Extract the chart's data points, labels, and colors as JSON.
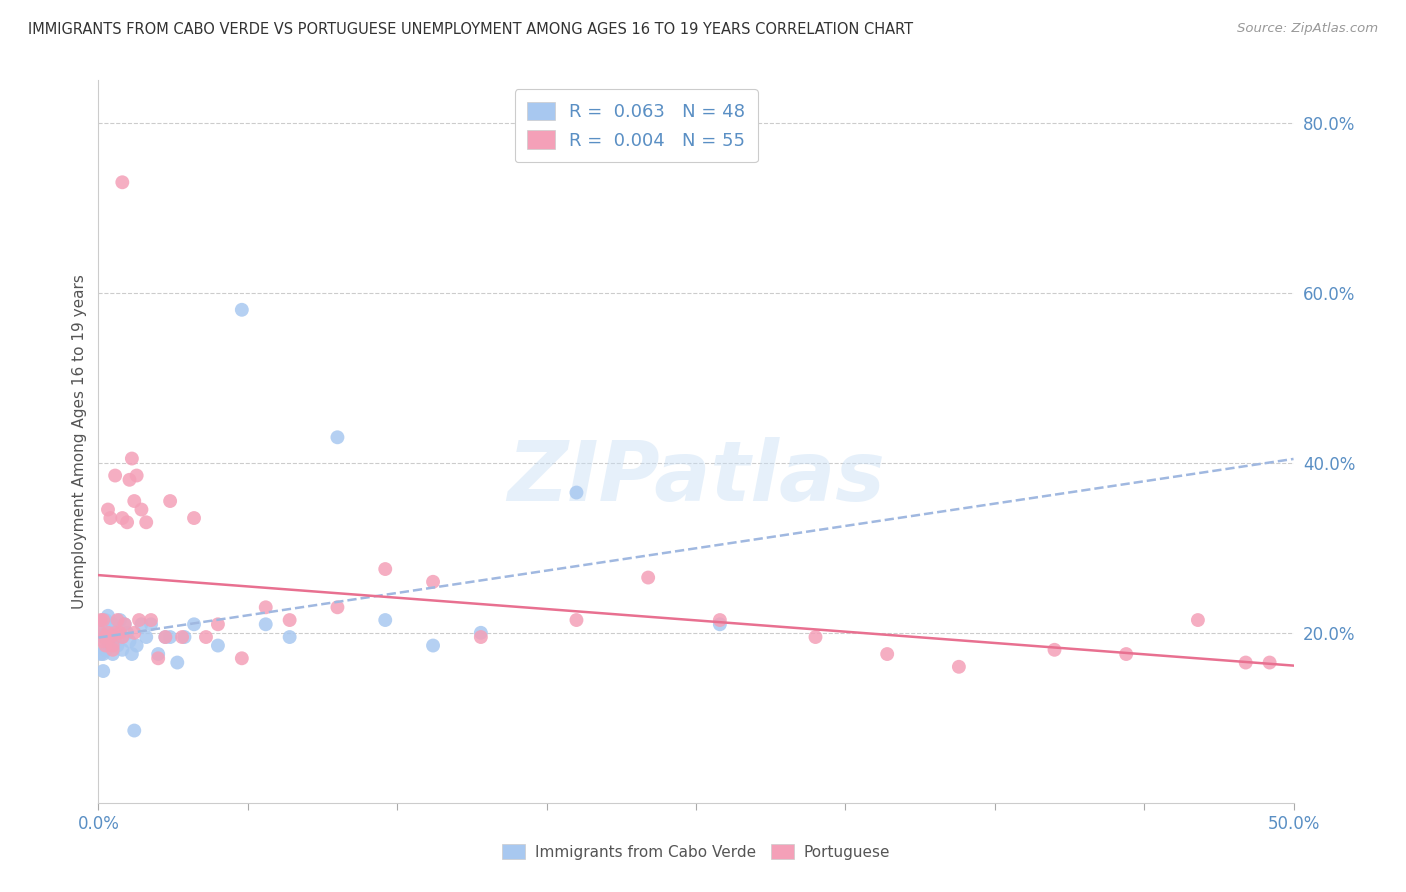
{
  "title": "IMMIGRANTS FROM CABO VERDE VS PORTUGUESE UNEMPLOYMENT AMONG AGES 16 TO 19 YEARS CORRELATION CHART",
  "source": "Source: ZipAtlas.com",
  "ylabel": "Unemployment Among Ages 16 to 19 years",
  "xlim": [
    0.0,
    0.5
  ],
  "ylim": [
    0.0,
    0.85
  ],
  "yticks_right": [
    0.2,
    0.4,
    0.6,
    0.8
  ],
  "ytick_labels_right": [
    "20.0%",
    "40.0%",
    "60.0%",
    "80.0%"
  ],
  "xtick_positions": [
    0.0,
    0.0625,
    0.125,
    0.1875,
    0.25,
    0.3125,
    0.375,
    0.4375,
    0.5
  ],
  "xtick_edge_labels": [
    "0.0%",
    "50.0%"
  ],
  "color_blue": "#a8c8f0",
  "color_pink": "#f4a0b8",
  "color_trend_blue": "#a0b8e0",
  "color_trend_pink": "#e87090",
  "cabo_verde_x": [
    0.001,
    0.001,
    0.002,
    0.002,
    0.002,
    0.002,
    0.003,
    0.003,
    0.003,
    0.004,
    0.004,
    0.004,
    0.005,
    0.005,
    0.005,
    0.006,
    0.006,
    0.007,
    0.007,
    0.008,
    0.009,
    0.01,
    0.01,
    0.011,
    0.012,
    0.013,
    0.014,
    0.015,
    0.016,
    0.018,
    0.02,
    0.022,
    0.025,
    0.028,
    0.03,
    0.033,
    0.036,
    0.04,
    0.05,
    0.06,
    0.07,
    0.08,
    0.1,
    0.12,
    0.14,
    0.16,
    0.2,
    0.26
  ],
  "cabo_verde_y": [
    0.175,
    0.21,
    0.155,
    0.175,
    0.195,
    0.215,
    0.18,
    0.2,
    0.215,
    0.19,
    0.2,
    0.22,
    0.185,
    0.195,
    0.205,
    0.175,
    0.21,
    0.19,
    0.2,
    0.185,
    0.215,
    0.18,
    0.195,
    0.21,
    0.2,
    0.19,
    0.175,
    0.085,
    0.185,
    0.21,
    0.195,
    0.21,
    0.175,
    0.195,
    0.195,
    0.165,
    0.195,
    0.21,
    0.185,
    0.58,
    0.21,
    0.195,
    0.43,
    0.215,
    0.185,
    0.2,
    0.365,
    0.21
  ],
  "portuguese_x": [
    0.001,
    0.001,
    0.002,
    0.002,
    0.003,
    0.003,
    0.004,
    0.004,
    0.005,
    0.005,
    0.006,
    0.006,
    0.007,
    0.007,
    0.008,
    0.009,
    0.01,
    0.01,
    0.011,
    0.012,
    0.013,
    0.014,
    0.015,
    0.016,
    0.017,
    0.018,
    0.02,
    0.022,
    0.025,
    0.028,
    0.03,
    0.035,
    0.04,
    0.045,
    0.05,
    0.06,
    0.07,
    0.08,
    0.1,
    0.12,
    0.14,
    0.16,
    0.2,
    0.23,
    0.26,
    0.3,
    0.33,
    0.36,
    0.4,
    0.43,
    0.46,
    0.48,
    0.49,
    0.01,
    0.015
  ],
  "portuguese_y": [
    0.215,
    0.2,
    0.215,
    0.19,
    0.195,
    0.185,
    0.2,
    0.345,
    0.195,
    0.335,
    0.185,
    0.18,
    0.2,
    0.385,
    0.215,
    0.2,
    0.195,
    0.335,
    0.21,
    0.33,
    0.38,
    0.405,
    0.355,
    0.385,
    0.215,
    0.345,
    0.33,
    0.215,
    0.17,
    0.195,
    0.355,
    0.195,
    0.335,
    0.195,
    0.21,
    0.17,
    0.23,
    0.215,
    0.23,
    0.275,
    0.26,
    0.195,
    0.215,
    0.265,
    0.215,
    0.195,
    0.175,
    0.16,
    0.18,
    0.175,
    0.215,
    0.165,
    0.165,
    0.73,
    0.2
  ]
}
